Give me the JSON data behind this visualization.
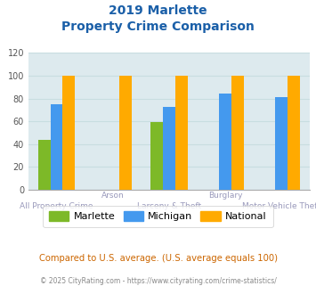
{
  "title_line1": "2019 Marlette",
  "title_line2": "Property Crime Comparison",
  "x_labels_top": [
    "",
    "Arson",
    "",
    "Burglary",
    ""
  ],
  "x_labels_bottom": [
    "All Property Crime",
    "",
    "Larceny & Theft",
    "",
    "Motor Vehicle Theft"
  ],
  "marlette": [
    44,
    0,
    59,
    0,
    0
  ],
  "michigan": [
    75,
    0,
    73,
    84,
    81
  ],
  "national": [
    100,
    100,
    100,
    100,
    100
  ],
  "colors": {
    "marlette": "#7db928",
    "michigan": "#4499ee",
    "national": "#ffaa00"
  },
  "ylim": [
    0,
    120
  ],
  "yticks": [
    0,
    20,
    40,
    60,
    80,
    100,
    120
  ],
  "legend_labels": [
    "Marlette",
    "Michigan",
    "National"
  ],
  "footnote1": "Compared to U.S. average. (U.S. average equals 100)",
  "footnote2": "© 2025 CityRating.com - https://www.cityrating.com/crime-statistics/",
  "title_color": "#1a5fa8",
  "footnote1_color": "#cc6600",
  "footnote2_color": "#888888",
  "xlabel_color": "#9999bb",
  "grid_color": "#c8dde0",
  "bg_color": "#ddeaee",
  "bar_width": 0.22
}
